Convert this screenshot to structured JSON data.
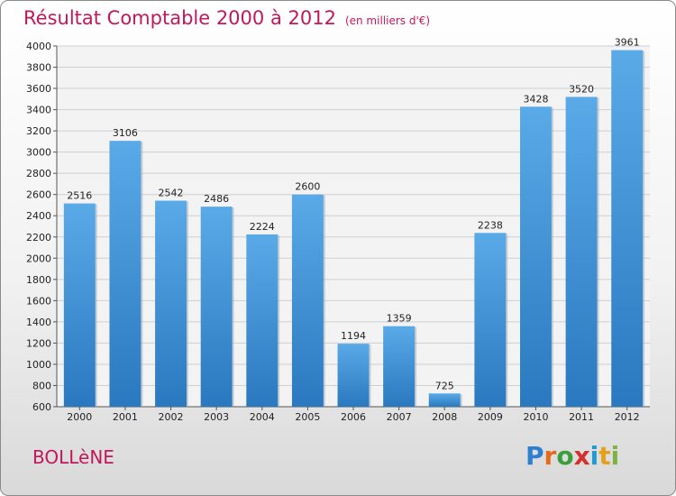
{
  "chart_data": {
    "type": "bar",
    "title": "Résultat Comptable 2000 à 2012",
    "subtitle": "(en milliers d'€)",
    "categories": [
      "2000",
      "2001",
      "2002",
      "2003",
      "2004",
      "2005",
      "2006",
      "2007",
      "2008",
      "2009",
      "2010",
      "2011",
      "2012"
    ],
    "values": [
      2516,
      3106,
      2542,
      2486,
      2224,
      2600,
      1194,
      1359,
      725,
      2238,
      3428,
      3520,
      3961
    ],
    "ylim": [
      600,
      4000
    ],
    "yticks": [
      600,
      800,
      1000,
      1200,
      1400,
      1600,
      1800,
      2000,
      2200,
      2400,
      2600,
      2800,
      3000,
      3200,
      3400,
      3600,
      3800,
      4000
    ],
    "xlabel": "",
    "ylabel": "",
    "grid": true,
    "bar_color": "#3d8fd6"
  },
  "location": "BOLLèNE",
  "brand": {
    "letters": [
      "P",
      "r",
      "o",
      "x",
      "i",
      "t",
      "i"
    ],
    "colors": [
      "#2f7fd1",
      "#e36b1b",
      "#3c9e3c",
      "#d62f2f",
      "#1f9ad6",
      "#e3a21b",
      "#7cb342"
    ]
  }
}
